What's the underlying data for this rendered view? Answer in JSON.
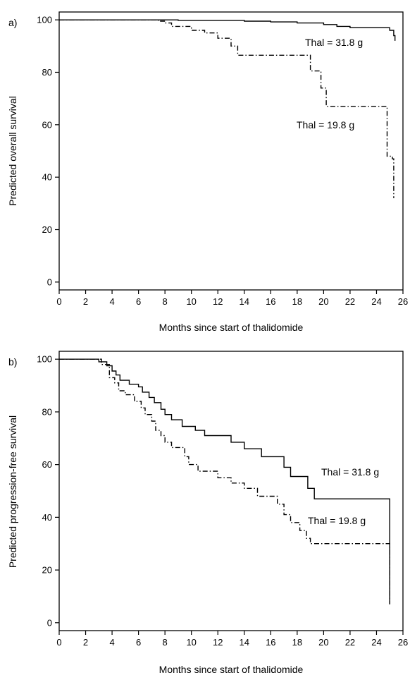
{
  "chart_data": [
    {
      "panel_label": "a)",
      "type": "line",
      "step": true,
      "xlabel": "Months since start of thalidomide",
      "ylabel": "Predicted overall survival",
      "xlim": [
        0,
        26
      ],
      "ylim": [
        -3,
        103
      ],
      "x_ticks": [
        0,
        2,
        4,
        6,
        8,
        10,
        12,
        14,
        16,
        18,
        20,
        22,
        24,
        26
      ],
      "y_ticks": [
        0,
        20,
        40,
        60,
        80,
        100
      ],
      "grid": false,
      "series": [
        {
          "name": "Thal = 31.8 g",
          "line_style": "solid",
          "points": [
            [
              0,
              100
            ],
            [
              9,
              100
            ],
            [
              9,
              99.8
            ],
            [
              14,
              99.8
            ],
            [
              14,
              99.5
            ],
            [
              16,
              99.5
            ],
            [
              16,
              99.2
            ],
            [
              18,
              99.2
            ],
            [
              18,
              98.8
            ],
            [
              20,
              98.8
            ],
            [
              20,
              98.2
            ],
            [
              21,
              98.2
            ],
            [
              21,
              97.5
            ],
            [
              22,
              97.5
            ],
            [
              22,
              97
            ],
            [
              25,
              97
            ],
            [
              25,
              96
            ],
            [
              25.3,
              96
            ],
            [
              25.3,
              94
            ],
            [
              25.4,
              94
            ],
            [
              25.4,
              92
            ]
          ]
        },
        {
          "name": "Thal = 19.8 g",
          "line_style": "dashdot",
          "points": [
            [
              0,
              100
            ],
            [
              7.5,
              100
            ],
            [
              7.5,
              99.5
            ],
            [
              8,
              99.5
            ],
            [
              8,
              98.8
            ],
            [
              8.5,
              98.8
            ],
            [
              8.5,
              97.5
            ],
            [
              10,
              97.5
            ],
            [
              10,
              96
            ],
            [
              11,
              96
            ],
            [
              11,
              95
            ],
            [
              12,
              95
            ],
            [
              12,
              93
            ],
            [
              13,
              93
            ],
            [
              13,
              90
            ],
            [
              13.5,
              90
            ],
            [
              13.5,
              86.5
            ],
            [
              19,
              86.5
            ],
            [
              19,
              80.5
            ],
            [
              19.8,
              80.5
            ],
            [
              19.8,
              74
            ],
            [
              20.2,
              74
            ],
            [
              20.2,
              67
            ],
            [
              24.8,
              67
            ],
            [
              24.8,
              48
            ],
            [
              25.2,
              48
            ],
            [
              25.2,
              47
            ],
            [
              25.3,
              47
            ],
            [
              25.3,
              32
            ]
          ]
        }
      ]
    },
    {
      "panel_label": "b)",
      "type": "line",
      "step": true,
      "xlabel": "Months since start of thalidomide",
      "ylabel": "Predicted progression-free survival",
      "xlim": [
        0,
        26
      ],
      "ylim": [
        -3,
        103
      ],
      "x_ticks": [
        0,
        2,
        4,
        6,
        8,
        10,
        12,
        14,
        16,
        18,
        20,
        22,
        24,
        26
      ],
      "y_ticks": [
        0,
        20,
        40,
        60,
        80,
        100
      ],
      "grid": false,
      "series": [
        {
          "name": "Thal = 31.8 g",
          "line_style": "solid",
          "points": [
            [
              0,
              100
            ],
            [
              3,
              100
            ],
            [
              3,
              99
            ],
            [
              3.6,
              99
            ],
            [
              3.6,
              97.5
            ],
            [
              4,
              97.5
            ],
            [
              4,
              95.5
            ],
            [
              4.3,
              95.5
            ],
            [
              4.3,
              94
            ],
            [
              4.6,
              94
            ],
            [
              4.6,
              92
            ],
            [
              5.3,
              92
            ],
            [
              5.3,
              90.5
            ],
            [
              6,
              90.5
            ],
            [
              6,
              89.5
            ],
            [
              6.3,
              89.5
            ],
            [
              6.3,
              87.5
            ],
            [
              6.8,
              87.5
            ],
            [
              6.8,
              85.5
            ],
            [
              7.2,
              85.5
            ],
            [
              7.2,
              83.5
            ],
            [
              7.7,
              83.5
            ],
            [
              7.7,
              81
            ],
            [
              8,
              81
            ],
            [
              8,
              79
            ],
            [
              8.5,
              79
            ],
            [
              8.5,
              77
            ],
            [
              9.3,
              77
            ],
            [
              9.3,
              74.5
            ],
            [
              10.3,
              74.5
            ],
            [
              10.3,
              73
            ],
            [
              11,
              73
            ],
            [
              11,
              71
            ],
            [
              13,
              71
            ],
            [
              13,
              68.5
            ],
            [
              14,
              68.5
            ],
            [
              14,
              66
            ],
            [
              15.3,
              66
            ],
            [
              15.3,
              63
            ],
            [
              17,
              63
            ],
            [
              17,
              59
            ],
            [
              17.5,
              59
            ],
            [
              17.5,
              55.5
            ],
            [
              18.8,
              55.5
            ],
            [
              18.8,
              51
            ],
            [
              19.3,
              51
            ],
            [
              19.3,
              47
            ],
            [
              25,
              47
            ],
            [
              25,
              7
            ]
          ]
        },
        {
          "name": "Thal = 19.8 g",
          "line_style": "dashdot",
          "points": [
            [
              0,
              100
            ],
            [
              3.2,
              100
            ],
            [
              3.2,
              98
            ],
            [
              3.8,
              98
            ],
            [
              3.8,
              93
            ],
            [
              4.2,
              93
            ],
            [
              4.2,
              91
            ],
            [
              4.5,
              91
            ],
            [
              4.5,
              88
            ],
            [
              5,
              88
            ],
            [
              5,
              86.5
            ],
            [
              5.7,
              86.5
            ],
            [
              5.7,
              84
            ],
            [
              6.2,
              84
            ],
            [
              6.2,
              81.5
            ],
            [
              6.5,
              81.5
            ],
            [
              6.5,
              79
            ],
            [
              7,
              79
            ],
            [
              7,
              76.5
            ],
            [
              7.3,
              76.5
            ],
            [
              7.3,
              73
            ],
            [
              7.7,
              73
            ],
            [
              7.7,
              71
            ],
            [
              8,
              71
            ],
            [
              8,
              68.5
            ],
            [
              8.5,
              68.5
            ],
            [
              8.5,
              66.5
            ],
            [
              9.5,
              66.5
            ],
            [
              9.5,
              63
            ],
            [
              9.8,
              63
            ],
            [
              9.8,
              60
            ],
            [
              10.5,
              60
            ],
            [
              10.5,
              57.5
            ],
            [
              12,
              57.5
            ],
            [
              12,
              55
            ],
            [
              13,
              55
            ],
            [
              13,
              53
            ],
            [
              14,
              53
            ],
            [
              14,
              51
            ],
            [
              15,
              51
            ],
            [
              15,
              48
            ],
            [
              16.5,
              48
            ],
            [
              16.5,
              45
            ],
            [
              17,
              45
            ],
            [
              17,
              41
            ],
            [
              17.5,
              41
            ],
            [
              17.5,
              38
            ],
            [
              18.2,
              38
            ],
            [
              18.2,
              35
            ],
            [
              18.7,
              35
            ],
            [
              18.7,
              32
            ],
            [
              19,
              32
            ],
            [
              19,
              30
            ],
            [
              25,
              30
            ],
            [
              25,
              7
            ]
          ]
        }
      ]
    }
  ]
}
